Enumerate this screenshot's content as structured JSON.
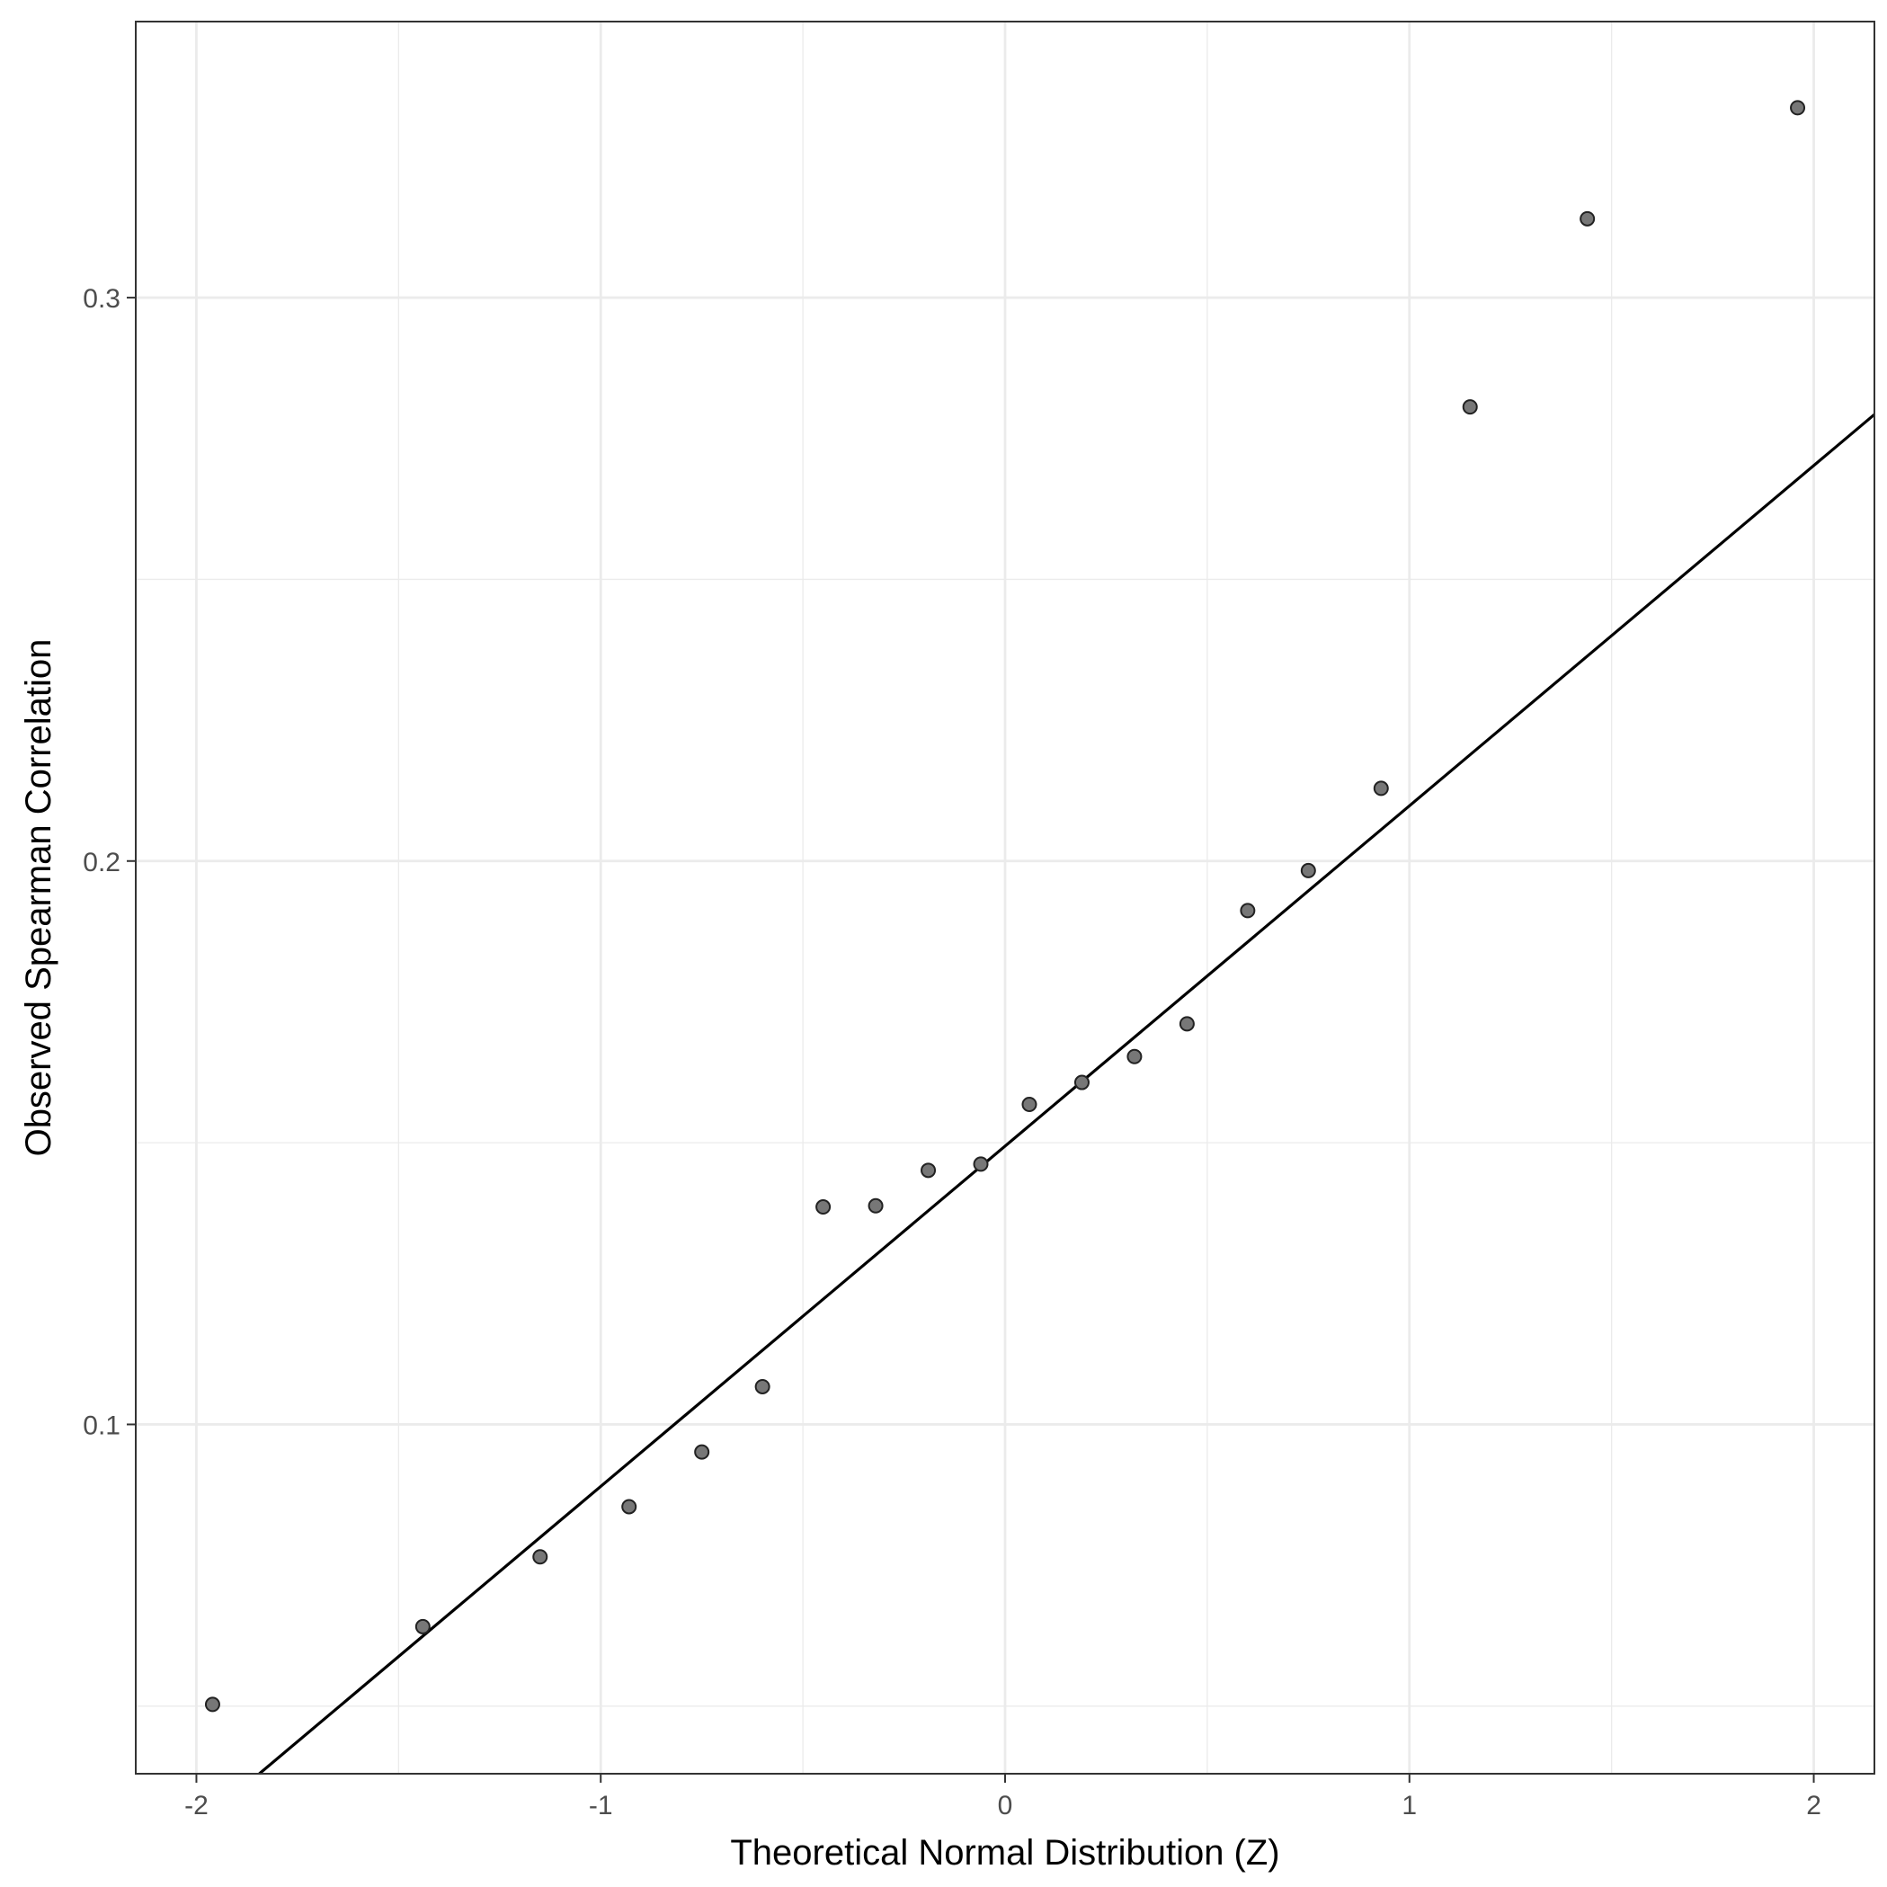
{
  "chart_data": {
    "type": "scatter",
    "title": "",
    "xlabel": "Theoretical Normal Distribution (Z)",
    "ylabel": "Observed Spearman Correlation",
    "xlim": [
      -2.15,
      2.15
    ],
    "ylim": [
      0.038,
      0.349
    ],
    "x_ticks": [
      -2,
      -1,
      0,
      1,
      2
    ],
    "x_tick_labels": [
      "-2",
      "-1",
      "0",
      "1",
      "2"
    ],
    "y_ticks": [
      0.1,
      0.2,
      0.3
    ],
    "y_tick_labels": [
      "0.1",
      "0.2",
      "0.3"
    ],
    "grid": true,
    "points": [
      {
        "x": -1.96,
        "y": 0.0503
      },
      {
        "x": -1.44,
        "y": 0.0641
      },
      {
        "x": -1.15,
        "y": 0.0765
      },
      {
        "x": -0.93,
        "y": 0.0854
      },
      {
        "x": -0.75,
        "y": 0.0951
      },
      {
        "x": -0.6,
        "y": 0.1067
      },
      {
        "x": -0.45,
        "y": 0.1386
      },
      {
        "x": -0.32,
        "y": 0.1388
      },
      {
        "x": -0.19,
        "y": 0.1451
      },
      {
        "x": -0.06,
        "y": 0.1462
      },
      {
        "x": 0.06,
        "y": 0.1568
      },
      {
        "x": 0.19,
        "y": 0.1607
      },
      {
        "x": 0.32,
        "y": 0.1653
      },
      {
        "x": 0.45,
        "y": 0.1711
      },
      {
        "x": 0.6,
        "y": 0.1912
      },
      {
        "x": 0.75,
        "y": 0.1983
      },
      {
        "x": 0.93,
        "y": 0.2129
      },
      {
        "x": 1.15,
        "y": 0.2806
      },
      {
        "x": 1.44,
        "y": 0.314
      },
      {
        "x": 1.96,
        "y": 0.3337
      }
    ],
    "reference_line": {
      "intercept": 0.1494,
      "slope": 0.0604
    },
    "colors": {
      "point_fill": "#777777",
      "point_stroke": "#222222",
      "line": "#000000",
      "grid": "#ebebeb",
      "panel_border": "#333333"
    }
  }
}
